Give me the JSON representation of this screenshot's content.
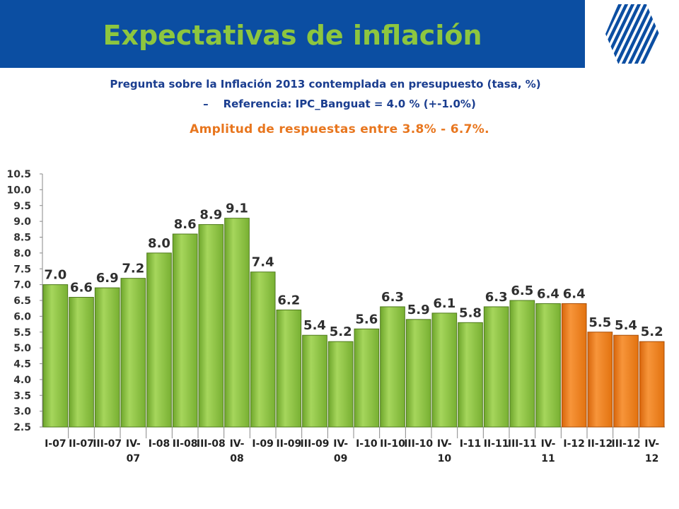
{
  "header": {
    "title": "Expectativas de inflación"
  },
  "logo": {
    "icon": "hexagon-stripes-logo-icon",
    "color": "#0b4ea2"
  },
  "subtitle": "Pregunta sobre la Inflación 2013 contemplada en presupuesto (tasa, %)",
  "reference": "Referencia: IPC_Banguat = 4.0 % (+-1.0%)",
  "range_note": "Amplitud de respuestas entre 3.8%  - 6.7%.",
  "chart_data": {
    "type": "bar",
    "categories": [
      "I-07",
      "II-07",
      "III-07",
      "IV-07",
      "I-08",
      "II-08",
      "III-08",
      "IV-08",
      "I-09",
      "II-09",
      "III-09",
      "IV-09",
      "I-10",
      "II-10",
      "III-10",
      "IV-10",
      "I-11",
      "II-11",
      "III-11",
      "IV-11",
      "I-12",
      "II-12",
      "III-12",
      "IV-12"
    ],
    "category_lines": [
      [
        "I-07"
      ],
      [
        "II-07"
      ],
      [
        "III-07"
      ],
      [
        "IV-",
        "07"
      ],
      [
        "I-08"
      ],
      [
        "II-08"
      ],
      [
        "III-08"
      ],
      [
        "IV-",
        "08"
      ],
      [
        "I-09"
      ],
      [
        "II-09"
      ],
      [
        "III-09"
      ],
      [
        "IV-",
        "09"
      ],
      [
        "I-10"
      ],
      [
        "II-10"
      ],
      [
        "III-10"
      ],
      [
        "IV-",
        "10"
      ],
      [
        "I-11"
      ],
      [
        "II-11"
      ],
      [
        "III-11"
      ],
      [
        "IV-",
        "11"
      ],
      [
        "I-12"
      ],
      [
        "II-12"
      ],
      [
        "III-12"
      ],
      [
        "IV-",
        "12"
      ]
    ],
    "values": [
      7.0,
      6.6,
      6.9,
      7.2,
      8.0,
      8.6,
      8.9,
      9.1,
      7.4,
      6.2,
      5.4,
      5.2,
      5.6,
      6.3,
      5.9,
      6.1,
      5.8,
      6.3,
      6.5,
      6.4,
      6.4,
      5.5,
      5.4,
      5.2
    ],
    "value_labels": [
      "7.0",
      "6.6",
      "6.9",
      "7.2",
      "8.0",
      "8.6",
      "8.9",
      "9.1",
      "7.4",
      "6.2",
      "5.4",
      "5.2",
      "5.6",
      "6.3",
      "5.9",
      "6.1",
      "5.8",
      "6.3",
      "6.5",
      "6.4",
      "6.4",
      "5.5",
      "5.4",
      "5.2"
    ],
    "highlight_from_index": 20,
    "colors": {
      "green": "#8cc63f",
      "green_dark": "#4f7a1c",
      "orange": "#f07c1a",
      "orange_dark": "#a84d06"
    },
    "ylim": [
      2.5,
      10.5
    ],
    "yticks": [
      "2.5",
      "3.0",
      "3.5",
      "4.0",
      "4.5",
      "5.0",
      "5.5",
      "6.0",
      "6.5",
      "7.0",
      "7.5",
      "8.0",
      "8.5",
      "9.0",
      "9.5",
      "10.0",
      "10.5"
    ],
    "grid": false,
    "title": "",
    "xlabel": "",
    "ylabel": ""
  }
}
